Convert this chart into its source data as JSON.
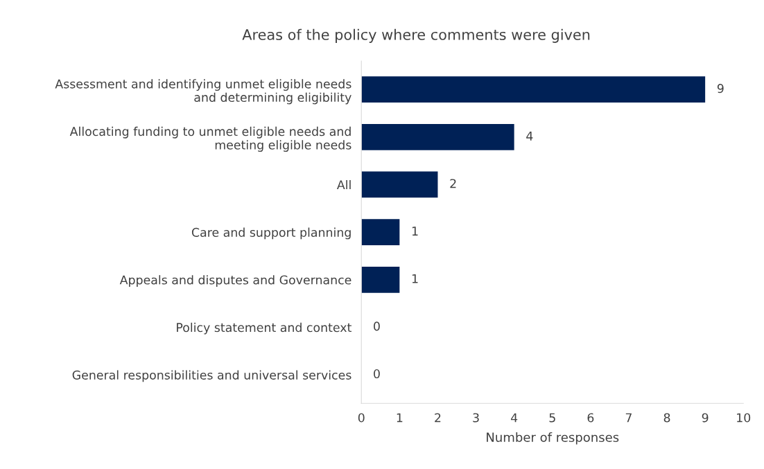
{
  "chart_data": {
    "type": "bar",
    "orientation": "horizontal",
    "title": "Areas of the policy where comments were given",
    "xlabel": "Number of responses",
    "categories": [
      "Assessment and identifying unmet eligible needs\nand determining eligibility",
      "Allocating funding to unmet eligible needs and\nmeeting eligible needs",
      "All",
      "Care and support planning",
      "Appeals and disputes and Governance",
      "Policy statement and context",
      "General responsibilities and universal services"
    ],
    "values": [
      9,
      4,
      2,
      1,
      1,
      0,
      0
    ],
    "color": "#002156",
    "xlim": [
      0,
      10
    ],
    "xticks": [
      0,
      1,
      2,
      3,
      4,
      5,
      6,
      7,
      8,
      9,
      10
    ],
    "grid": false,
    "data_labels": true
  }
}
